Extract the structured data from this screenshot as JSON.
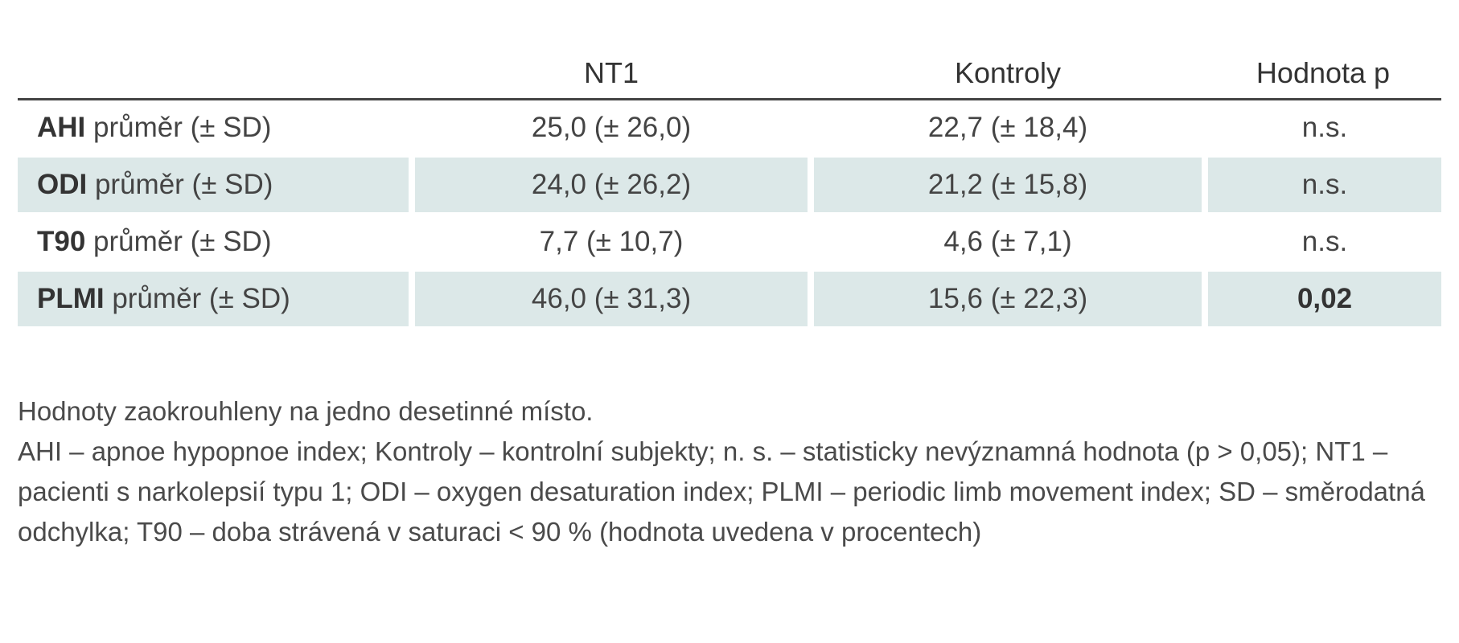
{
  "table": {
    "headers": [
      "",
      "NT1",
      "Kontroly",
      "Hodnota p"
    ],
    "rows": [
      {
        "label_bold": "AHI",
        "label_rest": " průměr (± SD)",
        "nt1": "25,0 (± 26,0)",
        "kontroly": "22,7 (± 18,4)",
        "p": "n.s.",
        "p_bold": false,
        "shaded": false
      },
      {
        "label_bold": "ODI",
        "label_rest": " průměr (± SD)",
        "nt1": "24,0 (± 26,2)",
        "kontroly": "21,2 (± 15,8)",
        "p": "n.s.",
        "p_bold": false,
        "shaded": true
      },
      {
        "label_bold": "T90",
        "label_rest": " průměr (± SD)",
        "nt1": "7,7 (± 10,7)",
        "kontroly": "4,6 (± 7,1)",
        "p": "n.s.",
        "p_bold": false,
        "shaded": false
      },
      {
        "label_bold": "PLMI",
        "label_rest": " průměr (± SD)",
        "nt1": "46,0 (± 31,3)",
        "kontroly": "15,6 (± 22,3)",
        "p": "0,02",
        "p_bold": true,
        "shaded": true
      }
    ]
  },
  "notes": {
    "line1": "Hodnoty zaokrouhleny na jedno desetinné místo.",
    "line2": "AHI – apnoe hypopnoe index; Kontroly – kontrolní subjekty; n. s. – statisticky nevýznamná hodnota (p > 0,05); NT1 – pacienti s narkolepsií typu 1; ODI – oxygen desaturation index; PLMI – periodic limb movement index; SD – směrodatná odchylka; T90 – doba strávená v saturaci < 90 % (hodnota uvedena v procentech)"
  },
  "colors": {
    "row_shade": "#dce8e8",
    "header_rule": "#444444"
  }
}
